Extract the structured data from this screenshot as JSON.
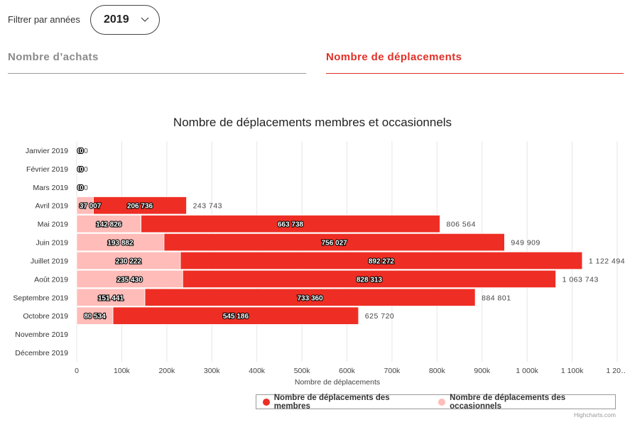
{
  "filter": {
    "label": "Filtrer par années",
    "selected_year": "2019"
  },
  "tabs": [
    {
      "label": "Nombre d’achats",
      "active": false
    },
    {
      "label": "Nombre de déplacements",
      "active": true
    }
  ],
  "colors": {
    "accent": "#e03027",
    "members": "#ee2e24",
    "occasional": "#ffbcb8",
    "inactive_tab": "#8a8a8a"
  },
  "credits": "Highcharts.com",
  "chart_data": {
    "type": "bar",
    "stacked": true,
    "orientation": "horizontal",
    "title": "Nombre de déplacements membres et occasionnels",
    "xlabel": "Nombre de déplacements",
    "categories": [
      "Janvier 2019",
      "Février 2019",
      "Mars 2019",
      "Avril 2019",
      "Mai 2019",
      "Juin 2019",
      "Juillet 2019",
      "Août 2019",
      "Septembre 2019",
      "Octobre 2019",
      "Novembre 2019",
      "Décembre 2019"
    ],
    "series": [
      {
        "name": "Nombre de déplacements des occasionnels",
        "color": "#ffbcb8",
        "values": [
          0,
          0,
          0,
          37007,
          142826,
          193882,
          230222,
          235430,
          151441,
          80534,
          null,
          null
        ],
        "labels": [
          "0",
          "0",
          "0",
          "37 007",
          "142 826",
          "193 882",
          "230 222",
          "235 430",
          "151 441",
          "80 534",
          "",
          ""
        ]
      },
      {
        "name": "Nombre de déplacements des membres",
        "color": "#ee2e24",
        "values": [
          0,
          0,
          0,
          206736,
          663738,
          756027,
          892272,
          828313,
          733360,
          545186,
          null,
          null
        ],
        "labels": [
          "0",
          "0",
          "0",
          "206 736",
          "663 738",
          "756 027",
          "892 272",
          "828 313",
          "733 360",
          "545 186",
          "",
          ""
        ]
      }
    ],
    "totals": [
      "0",
      "0",
      "0",
      "243 743",
      "806 564",
      "949 909",
      "1 122 494",
      "1 063 743",
      "884 801",
      "625 720",
      "",
      ""
    ],
    "total_values": [
      0,
      0,
      0,
      243743,
      806564,
      949909,
      1122494,
      1063743,
      884801,
      625720,
      null,
      null
    ],
    "xticks": [
      0,
      100000,
      200000,
      300000,
      400000,
      500000,
      600000,
      700000,
      800000,
      900000,
      1000000,
      1100000,
      1200000
    ],
    "xtick_labels": [
      "0",
      "100k",
      "200k",
      "300k",
      "400k",
      "500k",
      "600k",
      "700k",
      "800k",
      "900k",
      "1 000k",
      "1 100k",
      "1 20…"
    ],
    "xlim": [
      0,
      1200000
    ],
    "grid": true,
    "legend": [
      {
        "label": "Nombre de déplacements des membres",
        "color": "#ee2e24"
      },
      {
        "label": "Nombre de déplacements des occasionnels",
        "color": "#ffbcb8"
      }
    ],
    "legend_position": "bottom-right"
  }
}
